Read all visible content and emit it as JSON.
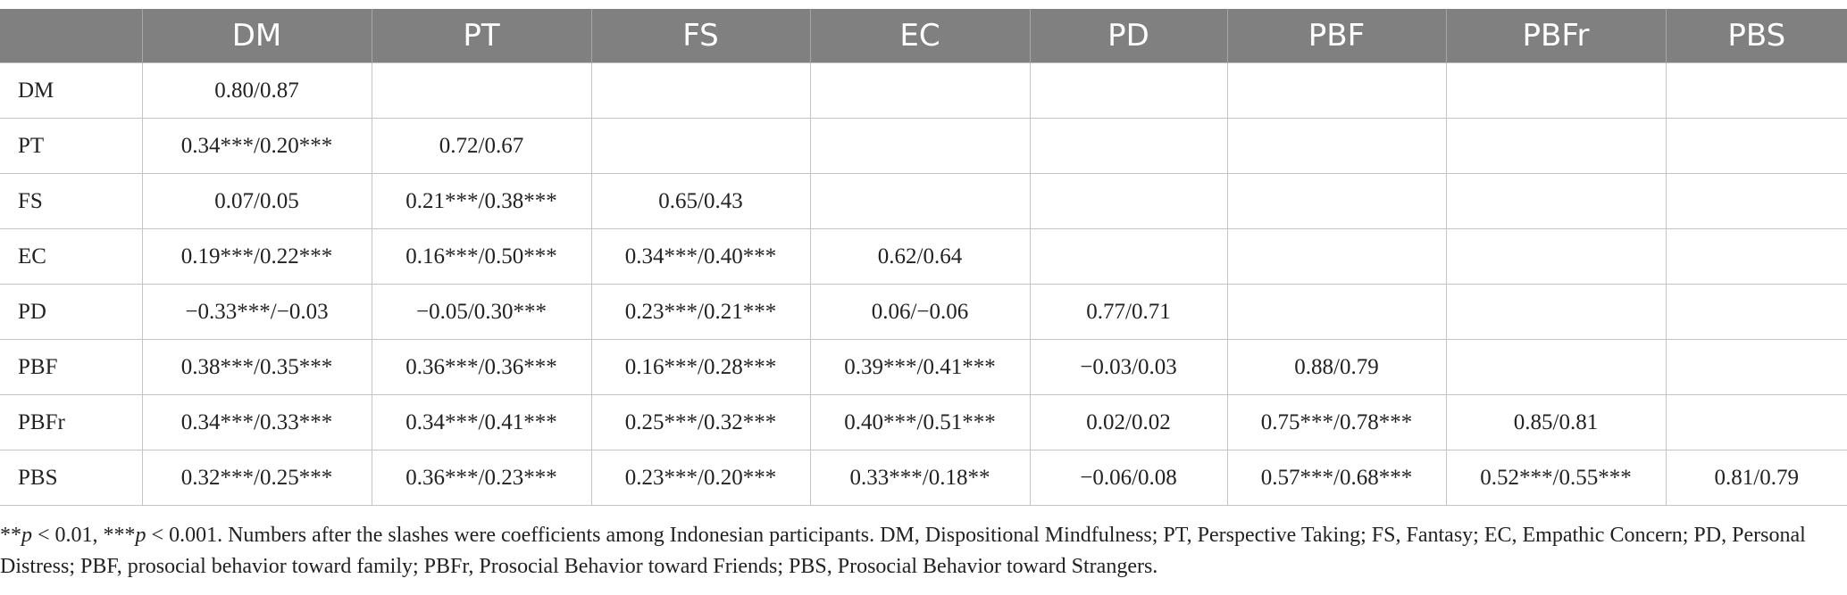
{
  "table": {
    "headers": [
      "",
      "DM",
      "PT",
      "FS",
      "EC",
      "PD",
      "PBF",
      "PBFr",
      "PBS"
    ],
    "rows": [
      [
        "DM",
        "0.80/0.87",
        "",
        "",
        "",
        "",
        "",
        "",
        ""
      ],
      [
        "PT",
        "0.34***/0.20***",
        "0.72/0.67",
        "",
        "",
        "",
        "",
        "",
        ""
      ],
      [
        "FS",
        "0.07/0.05",
        "0.21***/0.38***",
        "0.65/0.43",
        "",
        "",
        "",
        "",
        ""
      ],
      [
        "EC",
        "0.19***/0.22***",
        "0.16***/0.50***",
        "0.34***/0.40***",
        "0.62/0.64",
        "",
        "",
        "",
        ""
      ],
      [
        "PD",
        "−0.33***/−0.03",
        "−0.05/0.30***",
        "0.23***/0.21***",
        "0.06/−0.06",
        "0.77/0.71",
        "",
        "",
        ""
      ],
      [
        "PBF",
        "0.38***/0.35***",
        "0.36***/0.36***",
        "0.16***/0.28***",
        "0.39***/0.41***",
        "−0.03/0.03",
        "0.88/0.79",
        "",
        ""
      ],
      [
        "PBFr",
        "0.34***/0.33***",
        "0.34***/0.41***",
        "0.25***/0.32***",
        "0.40***/0.51***",
        "0.02/0.02",
        "0.75***/0.78***",
        "0.85/0.81",
        ""
      ],
      [
        "PBS",
        "0.32***/0.25***",
        "0.36***/0.23***",
        "0.23***/0.20***",
        "0.33***/0.18**",
        "−0.06/0.08",
        "0.57***/0.68***",
        "0.52***/0.55***",
        "0.81/0.79"
      ]
    ]
  },
  "footnote": {
    "sig1_stars": "**",
    "sig1_p": "p",
    "sig1_value": " < 0.01, ",
    "sig2_stars": "***",
    "sig2_p": "p",
    "sig2_value": " < 0.001. ",
    "text": "Numbers after the slashes were coefficients among Indonesian participants. DM, Dispositional Mindfulness; PT, Perspective Taking; FS, Fantasy; EC, Empathic Concern; PD, Personal Distress; PBF, prosocial behavior toward family; PBFr, Prosocial Behavior toward Friends; PBS, Prosocial Behavior toward Strangers."
  }
}
